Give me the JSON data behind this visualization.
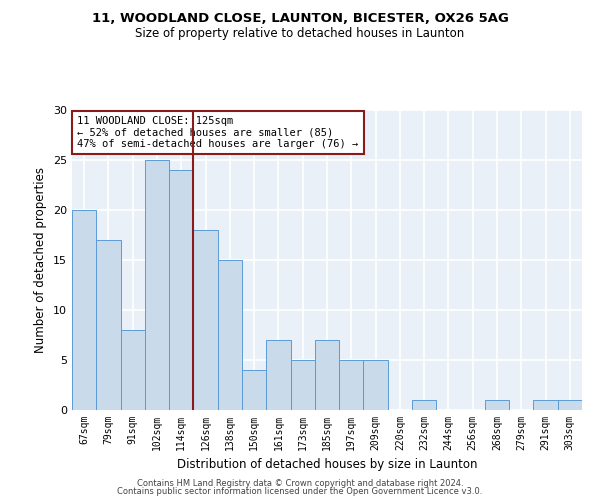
{
  "title1": "11, WOODLAND CLOSE, LAUNTON, BICESTER, OX26 5AG",
  "title2": "Size of property relative to detached houses in Launton",
  "xlabel": "Distribution of detached houses by size in Launton",
  "ylabel": "Number of detached properties",
  "categories": [
    "67sqm",
    "79sqm",
    "91sqm",
    "102sqm",
    "114sqm",
    "126sqm",
    "138sqm",
    "150sqm",
    "161sqm",
    "173sqm",
    "185sqm",
    "197sqm",
    "209sqm",
    "220sqm",
    "232sqm",
    "244sqm",
    "256sqm",
    "268sqm",
    "279sqm",
    "291sqm",
    "303sqm"
  ],
  "values": [
    20,
    17,
    8,
    25,
    24,
    18,
    15,
    4,
    7,
    5,
    7,
    5,
    5,
    0,
    1,
    0,
    0,
    1,
    0,
    1,
    1
  ],
  "bar_color": "#c9daea",
  "bar_edge_color": "#5b9bd5",
  "vline_x": 4.5,
  "vline_color": "#8b1a1a",
  "annotation_text": "11 WOODLAND CLOSE: 125sqm\n← 52% of detached houses are smaller (85)\n47% of semi-detached houses are larger (76) →",
  "annotation_box_color": "white",
  "annotation_box_edge_color": "#8b1a1a",
  "ylim": [
    0,
    30
  ],
  "yticks": [
    0,
    5,
    10,
    15,
    20,
    25,
    30
  ],
  "footer1": "Contains HM Land Registry data © Crown copyright and database right 2024.",
  "footer2": "Contains public sector information licensed under the Open Government Licence v3.0.",
  "bg_color": "#eaf0f8"
}
